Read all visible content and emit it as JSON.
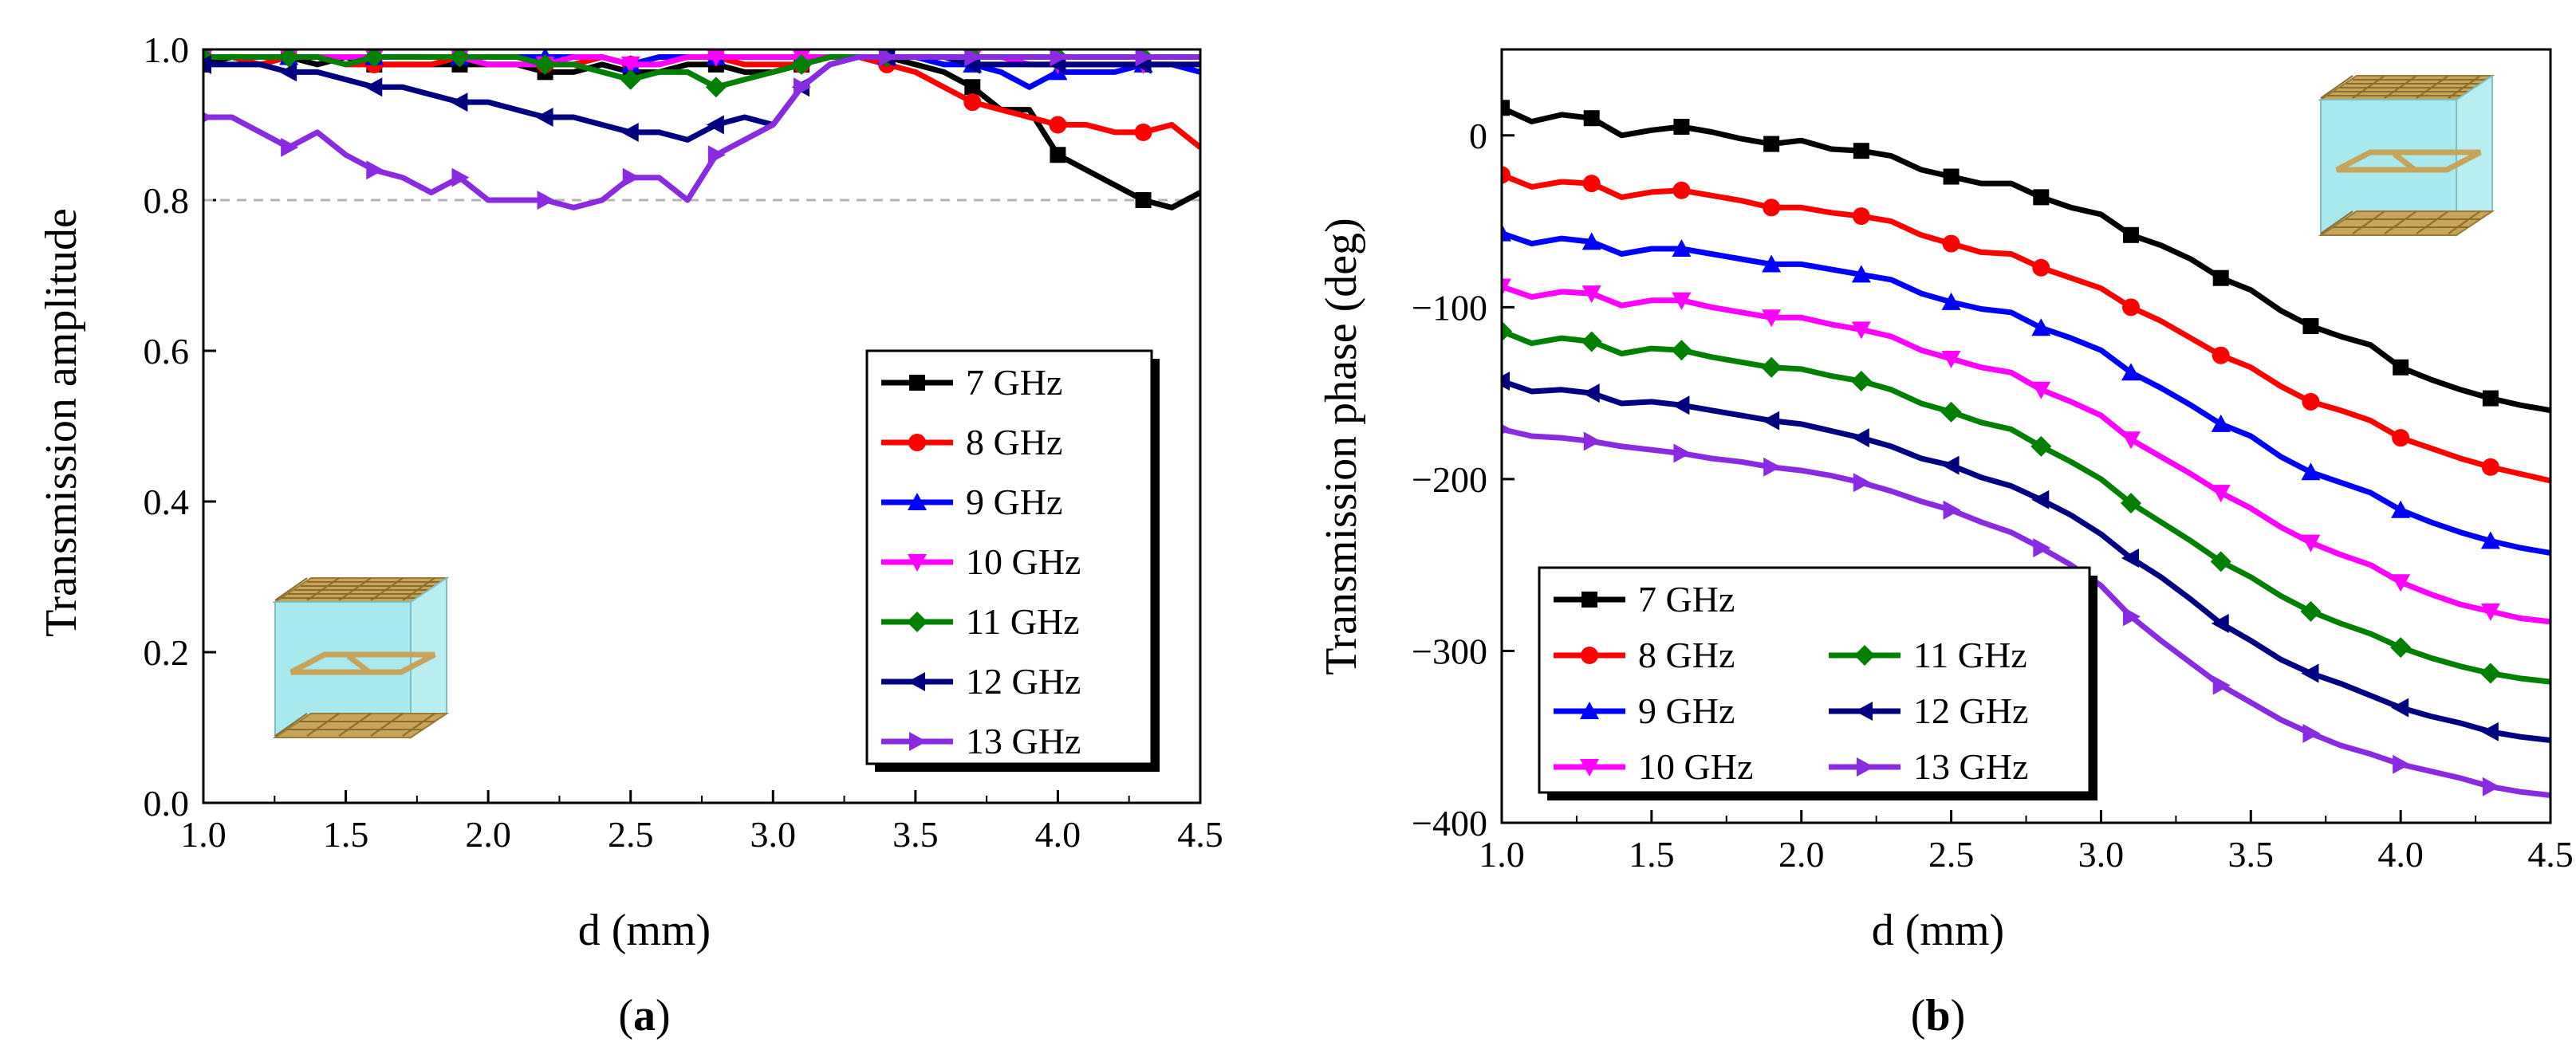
{
  "chart_data": [
    {
      "type": "line",
      "panel": "(a)",
      "xlabel": "d (mm)",
      "ylabel": "Transmission amplitude",
      "xlim": [
        1.0,
        4.5
      ],
      "ylim": [
        0.0,
        1.0
      ],
      "xticks": [
        "1.0",
        "1.5",
        "2.0",
        "2.5",
        "3.0",
        "3.5",
        "4.0",
        "4.5"
      ],
      "yticks": [
        "0.0",
        "0.2",
        "0.4",
        "0.6",
        "0.8",
        "1.0"
      ],
      "reference_line": 0.8,
      "legend_placement": "bottom-right",
      "x": [
        1.0,
        1.1,
        1.2,
        1.3,
        1.4,
        1.5,
        1.6,
        1.7,
        1.8,
        1.9,
        2.0,
        2.1,
        2.2,
        2.3,
        2.4,
        2.5,
        2.6,
        2.7,
        2.8,
        2.9,
        3.0,
        3.1,
        3.2,
        3.3,
        3.4,
        3.5,
        3.6,
        3.7,
        3.8,
        3.9,
        4.0,
        4.1,
        4.2,
        4.3,
        4.4,
        4.5
      ],
      "series": [
        {
          "name": "7 GHz",
          "color": "#000000",
          "marker": "square",
          "values": [
            0.98,
            0.99,
            0.99,
            0.99,
            0.98,
            0.99,
            0.98,
            0.98,
            0.98,
            0.98,
            0.98,
            0.98,
            0.97,
            0.97,
            0.98,
            0.97,
            0.97,
            0.98,
            0.98,
            0.97,
            0.97,
            0.98,
            0.99,
            0.99,
            0.99,
            0.98,
            0.97,
            0.95,
            0.92,
            0.92,
            0.86,
            0.84,
            0.82,
            0.8,
            0.79,
            0.81
          ]
        },
        {
          "name": "8 GHz",
          "color": "#ff0000",
          "marker": "circle",
          "values": [
            0.99,
            0.99,
            0.98,
            0.99,
            0.99,
            0.98,
            0.98,
            0.98,
            0.98,
            0.99,
            0.98,
            0.98,
            0.98,
            0.98,
            0.99,
            0.98,
            0.98,
            0.99,
            0.99,
            0.98,
            0.98,
            0.98,
            0.99,
            0.99,
            0.98,
            0.97,
            0.95,
            0.93,
            0.92,
            0.91,
            0.9,
            0.9,
            0.89,
            0.89,
            0.9,
            0.87
          ]
        },
        {
          "name": "9 GHz",
          "color": "#0000ff",
          "marker": "triangle-up",
          "values": [
            0.99,
            0.99,
            0.99,
            0.99,
            0.99,
            0.99,
            0.99,
            0.99,
            0.99,
            0.99,
            0.99,
            0.99,
            0.99,
            0.99,
            0.99,
            0.98,
            0.99,
            0.99,
            0.99,
            0.99,
            0.99,
            0.99,
            0.99,
            0.99,
            0.99,
            0.99,
            0.98,
            0.98,
            0.97,
            0.95,
            0.97,
            0.97,
            0.97,
            0.98,
            0.98,
            0.97
          ]
        },
        {
          "name": "10 GHz",
          "color": "#ff00ff",
          "marker": "triangle-down",
          "values": [
            0.99,
            0.99,
            0.99,
            0.99,
            0.99,
            0.99,
            0.99,
            0.99,
            0.99,
            0.99,
            0.98,
            0.98,
            0.98,
            0.99,
            0.99,
            0.98,
            0.98,
            0.99,
            0.99,
            0.99,
            0.99,
            0.99,
            0.99,
            0.99,
            0.99,
            0.99,
            0.99,
            0.99,
            0.99,
            0.98,
            0.98,
            0.98,
            0.98,
            0.98,
            0.98,
            0.98
          ]
        },
        {
          "name": "11 GHz",
          "color": "#008000",
          "marker": "diamond",
          "values": [
            0.99,
            0.99,
            0.99,
            0.99,
            0.99,
            0.98,
            0.99,
            0.99,
            0.99,
            0.99,
            0.99,
            0.99,
            0.98,
            0.98,
            0.97,
            0.96,
            0.97,
            0.97,
            0.95,
            0.96,
            0.97,
            0.98,
            0.99,
            0.99,
            0.99,
            0.99,
            0.99,
            0.99,
            0.99,
            0.99,
            0.99,
            0.99,
            0.99,
            0.99,
            0.99,
            0.99
          ]
        },
        {
          "name": "12 GHz",
          "color": "#000080",
          "marker": "triangle-left",
          "values": [
            0.98,
            0.98,
            0.98,
            0.97,
            0.97,
            0.96,
            0.95,
            0.95,
            0.94,
            0.93,
            0.93,
            0.92,
            0.91,
            0.91,
            0.9,
            0.89,
            0.89,
            0.88,
            0.9,
            0.91,
            0.9,
            0.95,
            0.98,
            0.99,
            0.99,
            0.99,
            0.99,
            0.98,
            0.98,
            0.98,
            0.98,
            0.98,
            0.98,
            0.98,
            0.98,
            0.98
          ]
        },
        {
          "name": "13 GHz",
          "color": "#8a2be2",
          "marker": "triangle-right",
          "values": [
            0.91,
            0.91,
            0.89,
            0.87,
            0.89,
            0.86,
            0.84,
            0.83,
            0.81,
            0.83,
            0.8,
            0.8,
            0.8,
            0.79,
            0.8,
            0.83,
            0.83,
            0.8,
            0.86,
            0.88,
            0.9,
            0.95,
            0.98,
            0.99,
            0.99,
            0.99,
            0.99,
            0.99,
            0.99,
            0.99,
            0.99,
            0.99,
            0.99,
            0.99,
            0.99,
            0.99
          ]
        }
      ]
    },
    {
      "type": "line",
      "panel": "(b)",
      "xlabel": "d (mm)",
      "ylabel": "Transmission phase (deg)",
      "xlim": [
        1.0,
        4.5
      ],
      "ylim": [
        -400,
        50
      ],
      "xticks": [
        "1.0",
        "1.5",
        "2.0",
        "2.5",
        "3.0",
        "3.5",
        "4.0",
        "4.5"
      ],
      "yticks": [
        "0",
        "−100",
        "−200",
        "−300",
        "−400"
      ],
      "legend_placement": "bottom-left",
      "x": [
        1.0,
        1.1,
        1.2,
        1.3,
        1.4,
        1.5,
        1.6,
        1.7,
        1.8,
        1.9,
        2.0,
        2.1,
        2.2,
        2.3,
        2.4,
        2.5,
        2.6,
        2.7,
        2.8,
        2.9,
        3.0,
        3.1,
        3.2,
        3.3,
        3.4,
        3.5,
        3.6,
        3.7,
        3.8,
        3.9,
        4.0,
        4.1,
        4.2,
        4.3,
        4.4,
        4.5
      ],
      "series": [
        {
          "name": "7 GHz",
          "color": "#000000",
          "marker": "square",
          "values": [
            16,
            8,
            12,
            10,
            0,
            3,
            5,
            2,
            -2,
            -5,
            -3,
            -8,
            -9,
            -12,
            -20,
            -24,
            -28,
            -28,
            -36,
            -42,
            -46,
            -58,
            -64,
            -72,
            -83,
            -90,
            -102,
            -111,
            -117,
            -122,
            -135,
            -142,
            -148,
            -153,
            -157,
            -160
          ]
        },
        {
          "name": "8 GHz",
          "color": "#ff0000",
          "marker": "circle",
          "values": [
            -23,
            -30,
            -27,
            -28,
            -36,
            -33,
            -32,
            -35,
            -38,
            -42,
            -42,
            -45,
            -47,
            -50,
            -58,
            -63,
            -68,
            -69,
            -77,
            -83,
            -89,
            -100,
            -108,
            -118,
            -128,
            -135,
            -146,
            -155,
            -160,
            -166,
            -176,
            -182,
            -188,
            -193,
            -197,
            -201
          ]
        },
        {
          "name": "9 GHz",
          "color": "#0000ff",
          "marker": "triangle-up",
          "values": [
            -57,
            -63,
            -60,
            -62,
            -69,
            -66,
            -66,
            -69,
            -72,
            -75,
            -75,
            -78,
            -81,
            -84,
            -92,
            -97,
            -101,
            -103,
            -112,
            -118,
            -125,
            -138,
            -147,
            -157,
            -168,
            -175,
            -187,
            -196,
            -202,
            -208,
            -218,
            -225,
            -231,
            -236,
            -240,
            -243
          ]
        },
        {
          "name": "10 GHz",
          "color": "#ff00ff",
          "marker": "triangle-down",
          "values": [
            -88,
            -94,
            -91,
            -92,
            -99,
            -96,
            -96,
            -100,
            -103,
            -106,
            -106,
            -110,
            -113,
            -117,
            -125,
            -130,
            -135,
            -138,
            -148,
            -155,
            -163,
            -177,
            -187,
            -197,
            -208,
            -217,
            -228,
            -237,
            -244,
            -250,
            -260,
            -267,
            -273,
            -277,
            -281,
            -283
          ]
        },
        {
          "name": "11 GHz",
          "color": "#008000",
          "marker": "diamond",
          "values": [
            -114,
            -121,
            -118,
            -120,
            -127,
            -124,
            -125,
            -129,
            -132,
            -135,
            -136,
            -140,
            -143,
            -148,
            -156,
            -161,
            -167,
            -171,
            -181,
            -190,
            -200,
            -214,
            -225,
            -236,
            -248,
            -257,
            -268,
            -277,
            -284,
            -290,
            -298,
            -304,
            -309,
            -313,
            -316,
            -318
          ]
        },
        {
          "name": "12 GHz",
          "color": "#000080",
          "marker": "triangle-left",
          "values": [
            -143,
            -149,
            -148,
            -150,
            -156,
            -155,
            -157,
            -160,
            -163,
            -166,
            -168,
            -172,
            -176,
            -181,
            -188,
            -192,
            -199,
            -204,
            -212,
            -221,
            -232,
            -246,
            -257,
            -270,
            -284,
            -294,
            -305,
            -313,
            -319,
            -326,
            -333,
            -338,
            -342,
            -347,
            -350,
            -352
          ]
        },
        {
          "name": "13 GHz",
          "color": "#8a2be2",
          "marker": "triangle-right",
          "values": [
            -171,
            -175,
            -176,
            -178,
            -181,
            -183,
            -185,
            -188,
            -190,
            -193,
            -195,
            -198,
            -202,
            -207,
            -213,
            -218,
            -225,
            -231,
            -240,
            -250,
            -262,
            -280,
            -294,
            -307,
            -320,
            -330,
            -340,
            -348,
            -355,
            -360,
            -366,
            -370,
            -374,
            -379,
            -382,
            -384
          ]
        }
      ]
    }
  ]
}
